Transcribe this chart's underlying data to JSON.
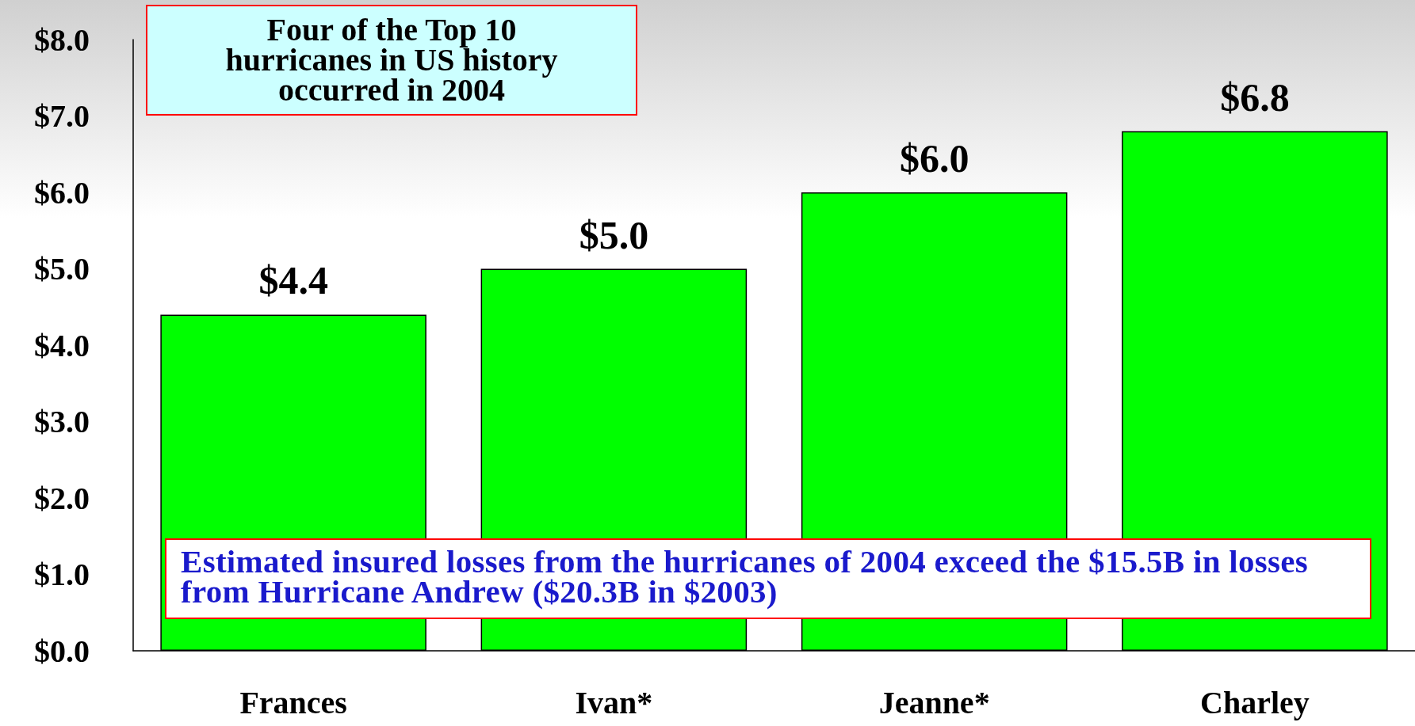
{
  "chart_data": {
    "type": "bar",
    "title": "Four of the Top 10 hurricanes in US history occurred in 2004",
    "categories": [
      "Frances",
      "Ivan*",
      "Jeanne*",
      "Charley"
    ],
    "values": [
      4.4,
      5.0,
      6.0,
      6.8
    ],
    "color": "#00ff00",
    "value_labels": [
      "$4.4",
      "$5.0",
      "$6.0",
      "$6.8"
    ],
    "ylim": [
      0,
      8
    ],
    "yticks": [
      {
        "value": 0,
        "label": "$0.0"
      },
      {
        "value": 1,
        "label": "$1.0"
      },
      {
        "value": 2,
        "label": "$2.0"
      },
      {
        "value": 3,
        "label": "$3.0"
      },
      {
        "value": 4,
        "label": "$4.0"
      },
      {
        "value": 5,
        "label": "$5.0"
      },
      {
        "value": 6,
        "label": "$6.0"
      },
      {
        "value": 7,
        "label": "$7.0"
      },
      {
        "value": 8,
        "label": "$8.0"
      }
    ],
    "grid": false,
    "annotations": [
      "Estimated insured losses from the hurricanes of 2004 exceed the $15.5B in losses from Hurricane Andrew ($20.3B in $2003)"
    ]
  }
}
